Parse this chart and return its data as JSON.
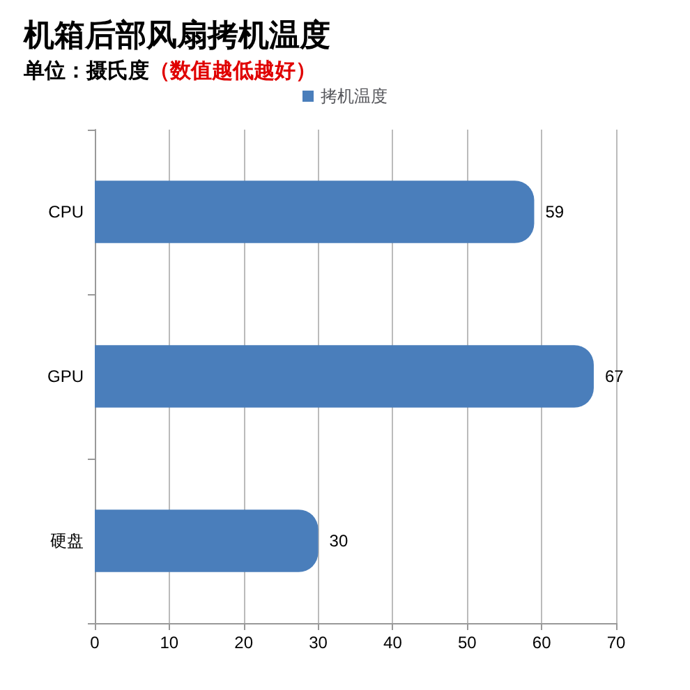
{
  "chart_data": {
    "type": "bar",
    "orientation": "horizontal",
    "title": "机箱后部风扇拷机温度",
    "subtitle": "单位：摄氏度",
    "annotations": [
      "（数值越低越好）"
    ],
    "categories": [
      "CPU",
      "GPU",
      "硬盘"
    ],
    "series": [
      {
        "name": "拷机温度",
        "color": "#4a7ebb",
        "values": [
          59,
          67,
          30
        ]
      }
    ],
    "xlim": [
      0,
      70
    ],
    "xticks": [
      0,
      10,
      20,
      30,
      40,
      50,
      60,
      70
    ],
    "grid": "x",
    "legend": "top",
    "data_labels": true
  }
}
